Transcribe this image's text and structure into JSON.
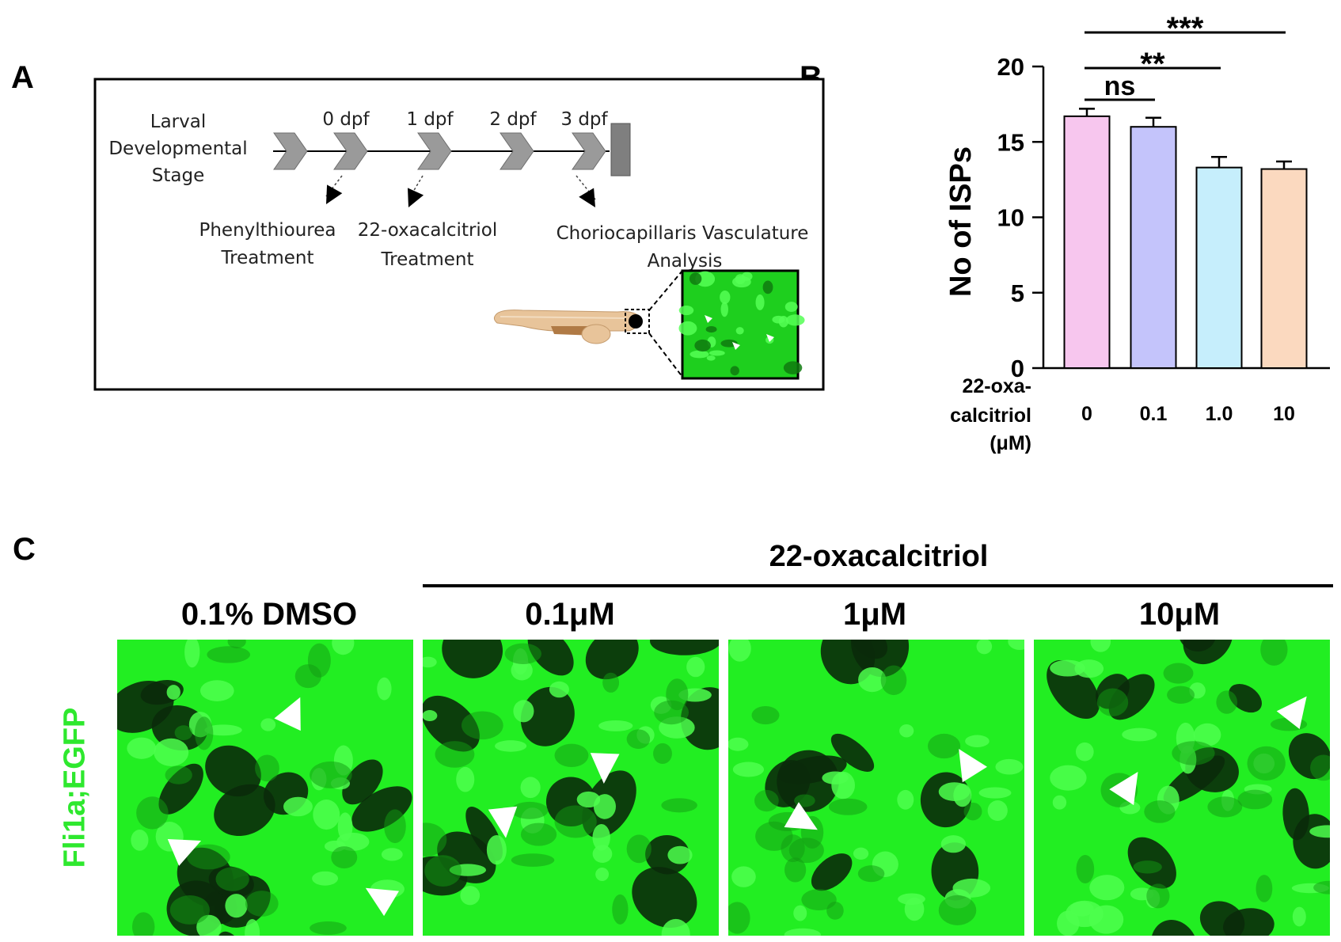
{
  "panels": {
    "a": {
      "letter": "A"
    },
    "b": {
      "letter": "B"
    },
    "c": {
      "letter": "C"
    }
  },
  "diagram_a": {
    "stage_label_lines": [
      "Larval",
      "Developmental",
      "Stage"
    ],
    "timepoints": [
      "0 dpf",
      "1 dpf",
      "2 dpf",
      "3 dpf"
    ],
    "treatments": [
      {
        "lines": [
          "Phenylthiourea",
          "Treatment"
        ]
      },
      {
        "lines": [
          "22-oxacalcitriol",
          "Treatment"
        ]
      },
      {
        "lines": [
          "Choriocapillaris Vasculature",
          "Analysis"
        ]
      }
    ],
    "arrow_color": "#9a9a9a",
    "fish_color": "#e8c49a",
    "inset_color": "#22dd22"
  },
  "chart_data": {
    "type": "bar",
    "categories": [
      "0",
      "0.1",
      "1.0",
      "10"
    ],
    "values": [
      16.7,
      16.0,
      13.3,
      13.2
    ],
    "errors": [
      0.5,
      0.6,
      0.7,
      0.5
    ],
    "colors": [
      "#f7c6ee",
      "#c4c4fb",
      "#c6eefc",
      "#fbd9bf"
    ],
    "ylabel": "No of ISPs",
    "xlabel_lines": [
      "22-oxa-",
      "calcitriol",
      "(μM)"
    ],
    "ylim": [
      0,
      20
    ],
    "yticks": [
      0,
      5,
      10,
      15,
      20
    ],
    "grid": false,
    "significance": [
      {
        "from": 0,
        "to": 1,
        "label": "ns"
      },
      {
        "from": 0,
        "to": 2,
        "label": "**"
      },
      {
        "from": 0,
        "to": 3,
        "label": "***"
      }
    ]
  },
  "panel_c": {
    "group_title": "22-oxacalcitriol",
    "conditions": [
      "0.1% DMSO",
      "0.1μM",
      "1μM",
      "10μM"
    ],
    "side_label": "Fli1a;EGFP",
    "image_color": "#22ee22"
  }
}
